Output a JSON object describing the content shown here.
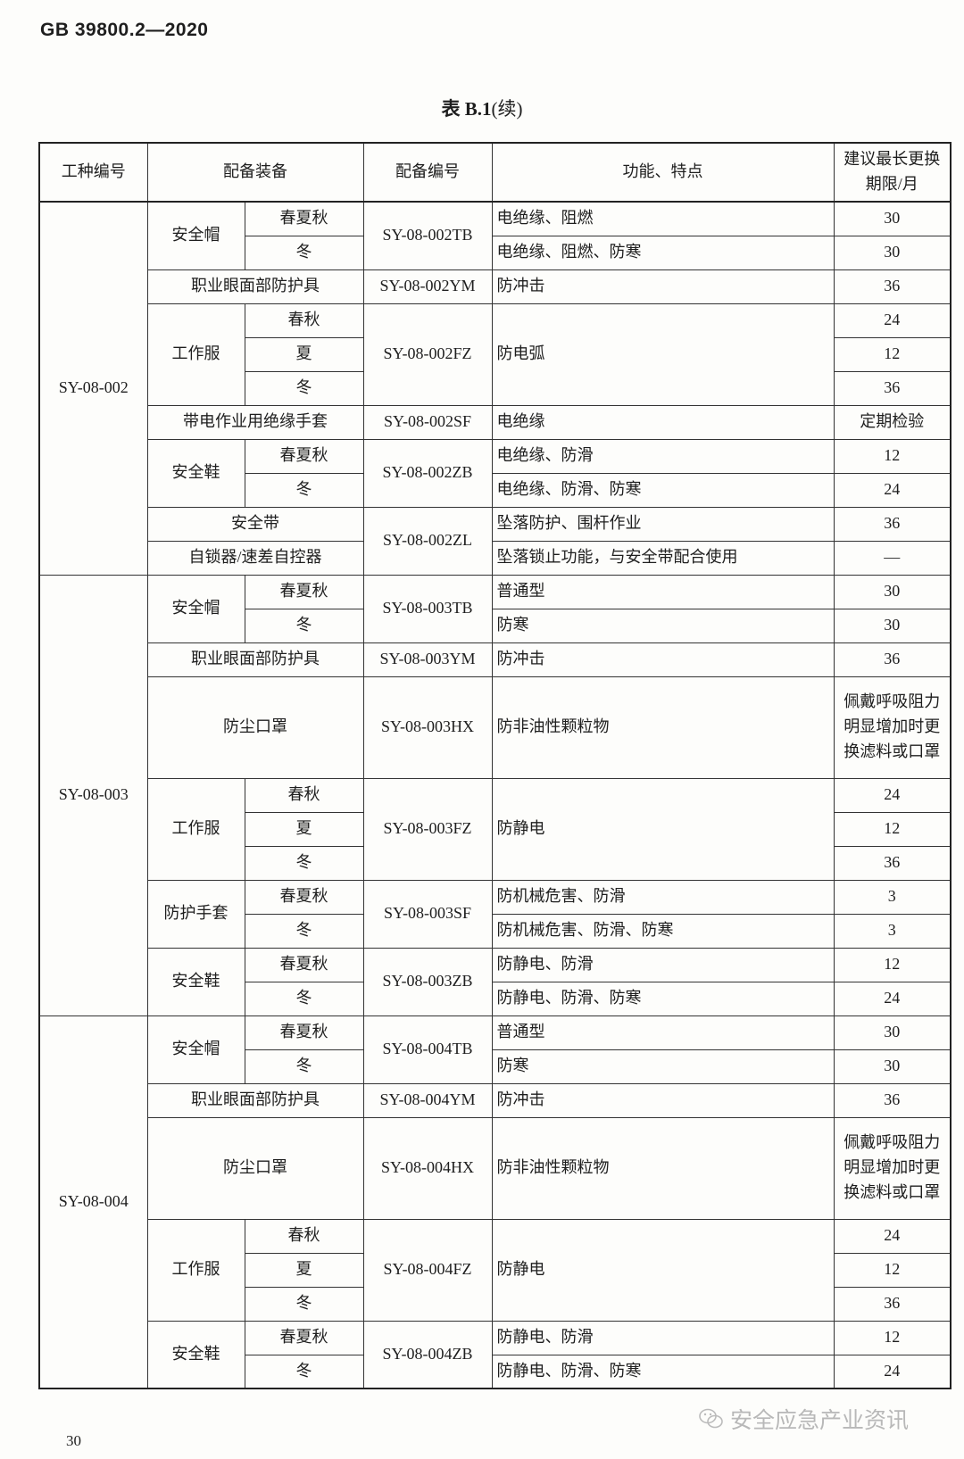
{
  "document": {
    "standard_number": "GB 39800.2—2020",
    "table_title": "表 B.1",
    "table_title_suffix": "(续)",
    "page_number": "30",
    "watermark": "安全应急产业资讯",
    "watermark_icon": "wechat-icon"
  },
  "table": {
    "headers": [
      "工种编号",
      "配备装备",
      "配备编号",
      "功能、特点",
      "建议最长更换期限/月"
    ],
    "sections": [
      {
        "code": "SY-08-002",
        "items": [
          {
            "equipment": "安全帽",
            "number": "SY-08-002TB",
            "variants": [
              {
                "season": "春夏秋",
                "function": "电绝缘、阻燃",
                "limit": "30"
              },
              {
                "season": "冬",
                "function": "电绝缘、阻燃、防寒",
                "limit": "30"
              }
            ]
          },
          {
            "equipment": "职业眼面部防护具",
            "number": "SY-08-002YM",
            "variants": [
              {
                "function": "防冲击",
                "limit": "36"
              }
            ]
          },
          {
            "equipment": "工作服",
            "number": "SY-08-002FZ",
            "function": "防电弧",
            "variants": [
              {
                "season": "春秋",
                "limit": "24"
              },
              {
                "season": "夏",
                "limit": "12"
              },
              {
                "season": "冬",
                "limit": "36"
              }
            ]
          },
          {
            "equipment": "带电作业用绝缘手套",
            "number": "SY-08-002SF",
            "variants": [
              {
                "function": "电绝缘",
                "limit": "定期检验"
              }
            ]
          },
          {
            "equipment": "安全鞋",
            "number": "SY-08-002ZB",
            "variants": [
              {
                "season": "春夏秋",
                "function": "电绝缘、防滑",
                "limit": "12"
              },
              {
                "season": "冬",
                "function": "电绝缘、防滑、防寒",
                "limit": "24"
              }
            ]
          },
          {
            "equipment": "安全带",
            "number": "SY-08-002ZL",
            "variants": [
              {
                "function": "坠落防护、围杆作业",
                "limit": "36"
              }
            ]
          },
          {
            "equipment": "自锁器/速差自控器",
            "number": "SY-08-002ZL",
            "variants": [
              {
                "function": "坠落锁止功能，与安全带配合使用",
                "limit": "—"
              }
            ]
          }
        ]
      },
      {
        "code": "SY-08-003",
        "items": [
          {
            "equipment": "安全帽",
            "number": "SY-08-003TB",
            "variants": [
              {
                "season": "春夏秋",
                "function": "普通型",
                "limit": "30"
              },
              {
                "season": "冬",
                "function": "防寒",
                "limit": "30"
              }
            ]
          },
          {
            "equipment": "职业眼面部防护具",
            "number": "SY-08-003YM",
            "variants": [
              {
                "function": "防冲击",
                "limit": "36"
              }
            ]
          },
          {
            "equipment": "防尘口罩",
            "number": "SY-08-003HX",
            "variants": [
              {
                "function": "防非油性颗粒物",
                "limit": "佩戴呼吸阻力明显增加时更换滤料或口罩"
              }
            ]
          },
          {
            "equipment": "工作服",
            "number": "SY-08-003FZ",
            "function": "防静电",
            "variants": [
              {
                "season": "春秋",
                "limit": "24"
              },
              {
                "season": "夏",
                "limit": "12"
              },
              {
                "season": "冬",
                "limit": "36"
              }
            ]
          },
          {
            "equipment": "防护手套",
            "number": "SY-08-003SF",
            "variants": [
              {
                "season": "春夏秋",
                "function": "防机械危害、防滑",
                "limit": "3"
              },
              {
                "season": "冬",
                "function": "防机械危害、防滑、防寒",
                "limit": "3"
              }
            ]
          },
          {
            "equipment": "安全鞋",
            "number": "SY-08-003ZB",
            "variants": [
              {
                "season": "春夏秋",
                "function": "防静电、防滑",
                "limit": "12"
              },
              {
                "season": "冬",
                "function": "防静电、防滑、防寒",
                "limit": "24"
              }
            ]
          }
        ]
      },
      {
        "code": "SY-08-004",
        "items": [
          {
            "equipment": "安全帽",
            "number": "SY-08-004TB",
            "variants": [
              {
                "season": "春夏秋",
                "function": "普通型",
                "limit": "30"
              },
              {
                "season": "冬",
                "function": "防寒",
                "limit": "30"
              }
            ]
          },
          {
            "equipment": "职业眼面部防护具",
            "number": "SY-08-004YM",
            "variants": [
              {
                "function": "防冲击",
                "limit": "36"
              }
            ]
          },
          {
            "equipment": "防尘口罩",
            "number": "SY-08-004HX",
            "variants": [
              {
                "function": "防非油性颗粒物",
                "limit": "佩戴呼吸阻力明显增加时更换滤料或口罩"
              }
            ]
          },
          {
            "equipment": "工作服",
            "number": "SY-08-004FZ",
            "function": "防静电",
            "variants": [
              {
                "season": "春秋",
                "limit": "24"
              },
              {
                "season": "夏",
                "limit": "12"
              },
              {
                "season": "冬",
                "limit": "36"
              }
            ]
          },
          {
            "equipment": "安全鞋",
            "number": "SY-08-004ZB",
            "variants": [
              {
                "season": "春夏秋",
                "function": "防静电、防滑",
                "limit": "12"
              },
              {
                "season": "冬",
                "function": "防静电、防滑、防寒",
                "limit": "24"
              }
            ]
          }
        ]
      }
    ]
  }
}
